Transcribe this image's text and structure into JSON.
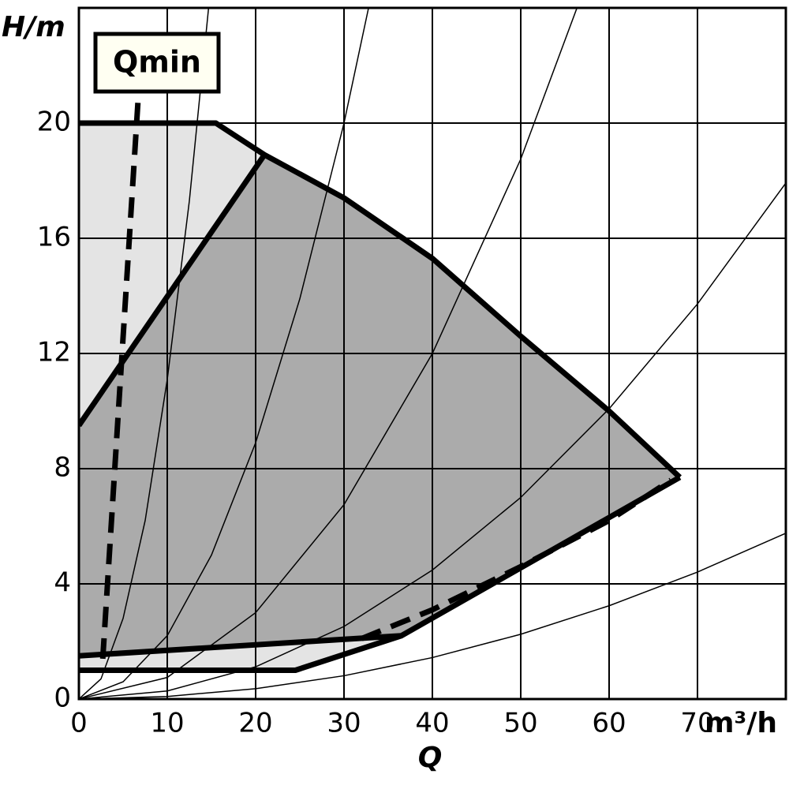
{
  "chart_data": {
    "type": "pump-curve",
    "y_label": "H/m",
    "x_label": "Q",
    "x_unit": "m³/h",
    "annotation": "Qmin",
    "xlim": [
      0,
      80
    ],
    "ylim": [
      0,
      24
    ],
    "xticks": [
      0,
      10,
      20,
      30,
      40,
      50,
      60,
      70
    ],
    "yticks": [
      0,
      4,
      8,
      12,
      16,
      20
    ],
    "grid": true,
    "regions": [
      {
        "color": "#e4e4e4",
        "x": [
          0,
          15.5,
          21,
          0
        ],
        "y": [
          20,
          20,
          18.9,
          9.5
        ]
      },
      {
        "color": "#ababab",
        "x": [
          0,
          21,
          30,
          40,
          50,
          60,
          68,
          36.5,
          0
        ],
        "y": [
          9.5,
          18.9,
          17.4,
          15.3,
          12.6,
          10,
          7.7,
          2.2,
          1.5
        ]
      },
      {
        "color": "#e4e4e4",
        "x": [
          0,
          24.5,
          36.5,
          0
        ],
        "y": [
          1,
          1,
          2.2,
          1.5
        ]
      }
    ],
    "curves": [
      {
        "x": [
          0,
          2.5,
          5,
          7.5,
          10,
          12.5,
          15
        ],
        "y": [
          0,
          0.7,
          2.8,
          6.2,
          11.1,
          17.3,
          25
        ]
      },
      {
        "x": [
          0,
          5,
          10,
          15,
          20,
          25,
          30,
          35
        ],
        "y": [
          0,
          0.6,
          2.2,
          5,
          8.9,
          13.9,
          20,
          27.2
        ]
      },
      {
        "x": [
          0,
          10,
          20,
          30,
          40,
          50,
          60
        ],
        "y": [
          0,
          0.75,
          3,
          6.75,
          12,
          18.75,
          27
        ]
      },
      {
        "x": [
          0,
          10,
          20,
          30,
          40,
          50,
          60,
          70,
          80
        ],
        "y": [
          0,
          0.28,
          1.12,
          2.52,
          4.48,
          7,
          10.08,
          13.72,
          17.92
        ]
      },
      {
        "x": [
          0,
          10,
          20,
          30,
          40,
          50,
          60,
          70,
          80
        ],
        "y": [
          0,
          0.09,
          0.36,
          0.81,
          1.44,
          2.25,
          3.24,
          4.41,
          5.76
        ]
      }
    ],
    "limits": [
      {
        "style": "solid",
        "x": [
          0,
          15.5,
          21,
          30,
          40,
          50,
          60,
          68
        ],
        "y": [
          20,
          20,
          18.9,
          17.4,
          15.3,
          12.6,
          10,
          7.7
        ]
      },
      {
        "style": "solid",
        "x": [
          0,
          21
        ],
        "y": [
          9.5,
          18.9
        ]
      },
      {
        "style": "solid",
        "x": [
          0,
          36.5,
          68
        ],
        "y": [
          1.5,
          2.2,
          7.7
        ]
      },
      {
        "style": "solid",
        "x": [
          0,
          24.5,
          36.5
        ],
        "y": [
          1,
          1,
          2.2
        ]
      },
      {
        "style": "dashed",
        "x": [
          2.7,
          6.8
        ],
        "y": [
          1.4,
          21.3
        ]
      },
      {
        "style": "dashed",
        "x": [
          32,
          40,
          50,
          60,
          67
        ],
        "y": [
          2.1,
          3.1,
          4.6,
          6.2,
          7.6
        ]
      }
    ]
  }
}
